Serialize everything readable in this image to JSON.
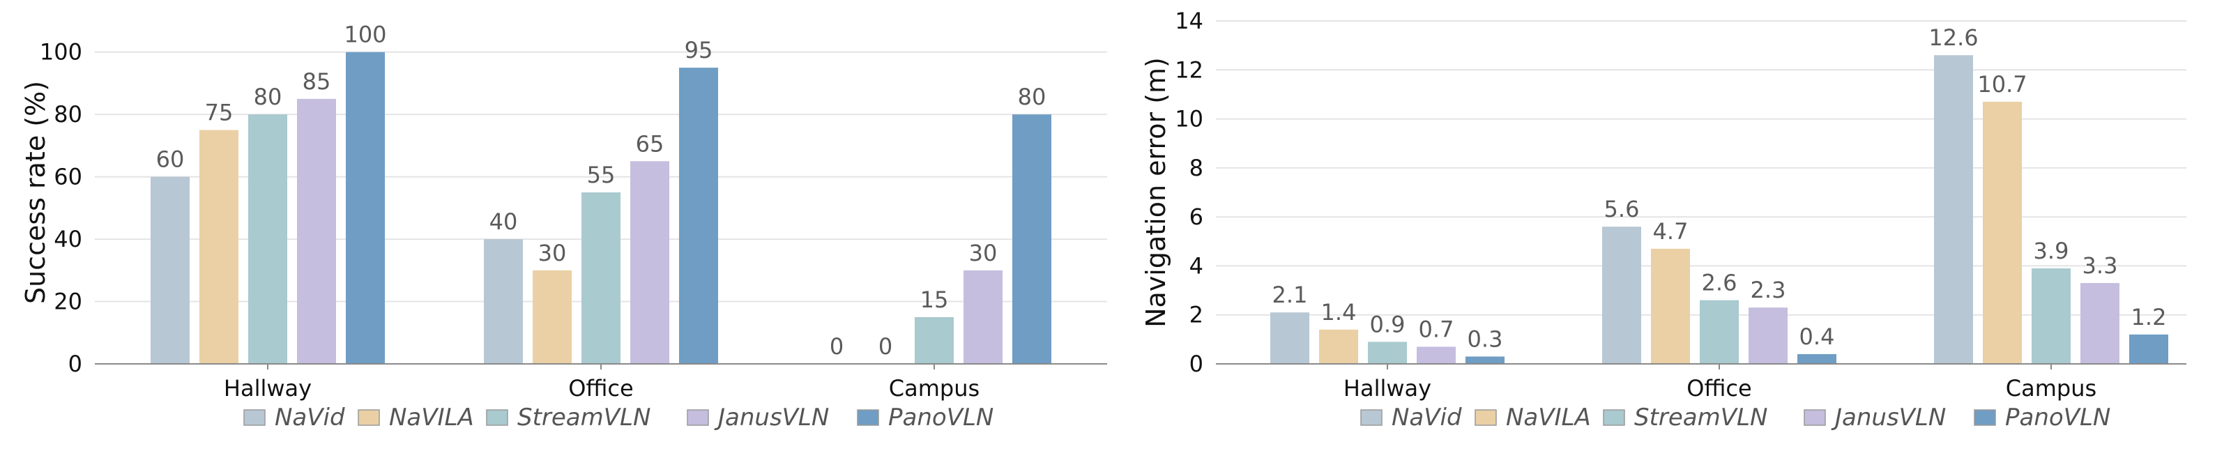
{
  "chart_data": [
    {
      "type": "bar",
      "title": "",
      "xlabel": "",
      "ylabel": "Success rate (%)",
      "ylim": [
        0,
        110
      ],
      "yticks": [
        0,
        20,
        40,
        60,
        80,
        100
      ],
      "categories": [
        "Hallway",
        "Office",
        "Campus"
      ],
      "series": [
        {
          "name": "NaVid",
          "values": [
            60,
            40,
            0
          ],
          "labels": [
            "60",
            "40",
            "0"
          ],
          "color": "#b8c7d4"
        },
        {
          "name": "NaVILA",
          "values": [
            75,
            30,
            0
          ],
          "labels": [
            "75",
            "30",
            "0"
          ],
          "color": "#ead0a4"
        },
        {
          "name": "StreamVLN",
          "values": [
            80,
            55,
            15
          ],
          "labels": [
            "80",
            "55",
            "15"
          ],
          "color": "#a9cacf"
        },
        {
          "name": "JanusVLN",
          "values": [
            85,
            65,
            30
          ],
          "labels": [
            "85",
            "65",
            "30"
          ],
          "color": "#c5bedf"
        },
        {
          "name": "PanoVLN",
          "values": [
            100,
            95,
            80
          ],
          "labels": [
            "100",
            "95",
            "80"
          ],
          "color": "#6f9dc4"
        }
      ],
      "grid": true,
      "legend": "bottom"
    },
    {
      "type": "bar",
      "title": "",
      "xlabel": "",
      "ylabel": "Navigation error (m)",
      "ylim": [
        0,
        14
      ],
      "yticks": [
        0,
        2,
        4,
        6,
        8,
        10,
        12,
        14
      ],
      "categories": [
        "Hallway",
        "Office",
        "Campus"
      ],
      "series": [
        {
          "name": "NaVid",
          "values": [
            2.1,
            5.6,
            12.6
          ],
          "labels": [
            "2.1",
            "5.6",
            "12.6"
          ],
          "color": "#b8c7d4"
        },
        {
          "name": "NaVILA",
          "values": [
            1.4,
            4.7,
            10.7
          ],
          "labels": [
            "1.4",
            "4.7",
            "10.7"
          ],
          "color": "#ead0a4"
        },
        {
          "name": "StreamVLN",
          "values": [
            0.9,
            2.6,
            3.9
          ],
          "labels": [
            "0.9",
            "2.6",
            "3.9"
          ],
          "color": "#a9cacf"
        },
        {
          "name": "JanusVLN",
          "values": [
            0.7,
            2.3,
            3.3
          ],
          "labels": [
            "0.7",
            "2.3",
            "3.3"
          ],
          "color": "#c5bedf"
        },
        {
          "name": "PanoVLN",
          "values": [
            0.3,
            0.4,
            1.2
          ],
          "labels": [
            "0.3",
            "0.4",
            "1.2"
          ],
          "color": "#6f9dc4"
        }
      ],
      "grid": true,
      "legend": "bottom"
    }
  ]
}
